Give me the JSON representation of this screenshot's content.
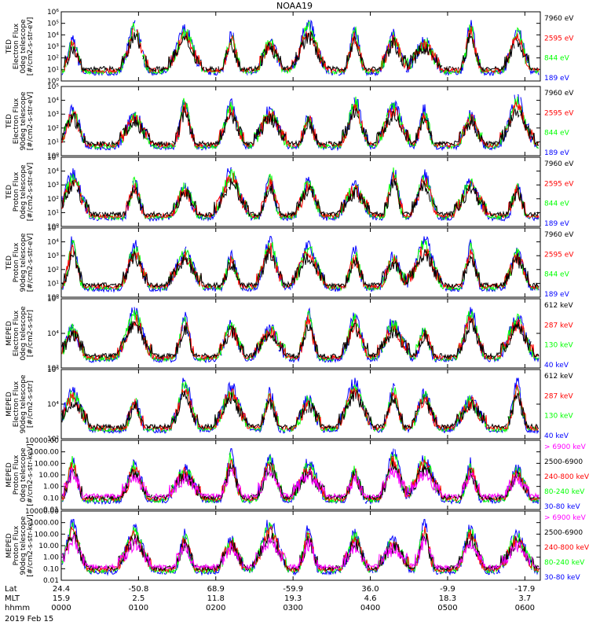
{
  "title": "NOAA19",
  "date_label": "2019 Feb 15",
  "ephemeris": {
    "row_labels": [
      "Lat",
      "MLT",
      "hhmm"
    ],
    "rows": [
      [
        "24.4",
        "-50.8",
        "68.9",
        "-59.9",
        "36.0",
        "-9.9",
        "-17.9"
      ],
      [
        "15.9",
        "2.5",
        "11.8",
        "19.3",
        "4.6",
        "18.3",
        "3.7"
      ],
      [
        "0000",
        "0100",
        "0200",
        "0300",
        "0400",
        "0500",
        "0600"
      ]
    ]
  },
  "colors": {
    "black": "#000000",
    "red": "#ff0000",
    "green": "#00ff00",
    "blue": "#0000ff",
    "magenta": "#ff00ff"
  },
  "chart_data": [
    {
      "type": "line",
      "instrument": "TED",
      "ylabel": [
        "TED",
        "Electron Flux",
        "0deg telescope",
        "[#/cm2-s-str-eV]"
      ],
      "yscale": "log",
      "ylim": [
        1,
        1000000
      ],
      "ytick_labels": [
        "10⁰",
        "10¹",
        "10²",
        "10³",
        "10⁴",
        "10⁵",
        "10⁶"
      ],
      "series": [
        {
          "name": "7960 eV",
          "color": "#000000"
        },
        {
          "name": "2595 eV",
          "color": "#ff0000"
        },
        {
          "name": "844 eV",
          "color": "#00ff00"
        },
        {
          "name": "189 eV",
          "color": "#0000ff"
        }
      ]
    },
    {
      "type": "line",
      "instrument": "TED",
      "ylabel": [
        "TED",
        "Electron Flux",
        "90deg telescope",
        "[#/cm2-s-str-eV]"
      ],
      "yscale": "log",
      "ylim": [
        1,
        100000
      ],
      "ytick_labels": [
        "10⁰",
        "10¹",
        "10²",
        "10³",
        "10⁴",
        "10⁵"
      ],
      "series": [
        {
          "name": "7960 eV",
          "color": "#000000"
        },
        {
          "name": "2595 eV",
          "color": "#ff0000"
        },
        {
          "name": "844 eV",
          "color": "#00ff00"
        },
        {
          "name": "189 eV",
          "color": "#0000ff"
        }
      ]
    },
    {
      "type": "line",
      "instrument": "TED",
      "ylabel": [
        "TED",
        "Proton Flux",
        "0deg telescope",
        "[#/cm2-s-str-eV]"
      ],
      "yscale": "log",
      "ylim": [
        1,
        100000
      ],
      "ytick_labels": [
        "10⁰",
        "10¹",
        "10²",
        "10³",
        "10⁴",
        "10⁵"
      ],
      "series": [
        {
          "name": "7960 eV",
          "color": "#000000"
        },
        {
          "name": "2595 eV",
          "color": "#ff0000"
        },
        {
          "name": "844 eV",
          "color": "#00ff00"
        },
        {
          "name": "189 eV",
          "color": "#0000ff"
        }
      ]
    },
    {
      "type": "line",
      "instrument": "TED",
      "ylabel": [
        "TED",
        "Proton Flux",
        "90deg telescope",
        "[#/cm2-s-str-eV]"
      ],
      "yscale": "log",
      "ylim": [
        1,
        100000
      ],
      "ytick_labels": [
        "10⁰",
        "10¹",
        "10²",
        "10³",
        "10⁴",
        "10⁵"
      ],
      "series": [
        {
          "name": "7960 eV",
          "color": "#000000"
        },
        {
          "name": "2595 eV",
          "color": "#ff0000"
        },
        {
          "name": "844 eV",
          "color": "#00ff00"
        },
        {
          "name": "189 eV",
          "color": "#0000ff"
        }
      ]
    },
    {
      "type": "line",
      "instrument": "MEPED",
      "ylabel": [
        "MEPED",
        "Electron Flux",
        "0deg telescope",
        "[#/cm2-s-str]"
      ],
      "yscale": "log",
      "ylim": [
        10,
        1000000
      ],
      "ytick_labels": [
        "10²",
        "10⁴",
        "10⁶"
      ],
      "series": [
        {
          "name": "612 keV",
          "color": "#000000"
        },
        {
          "name": "287 keV",
          "color": "#ff0000"
        },
        {
          "name": "130 keV",
          "color": "#00ff00"
        },
        {
          "name": "40 keV",
          "color": "#0000ff"
        }
      ]
    },
    {
      "type": "line",
      "instrument": "MEPED",
      "ylabel": [
        "MEPED",
        "Electron Flux",
        "90deg telescope",
        "[#/cm2-s-str]"
      ],
      "yscale": "log",
      "ylim": [
        10,
        1000000
      ],
      "ytick_labels": [
        "10²",
        "10⁴",
        "10⁶"
      ],
      "series": [
        {
          "name": "612 keV",
          "color": "#000000"
        },
        {
          "name": "287 keV",
          "color": "#ff0000"
        },
        {
          "name": "130 keV",
          "color": "#00ff00"
        },
        {
          "name": "40 keV",
          "color": "#0000ff"
        }
      ]
    },
    {
      "type": "line",
      "instrument": "MEPED",
      "ylabel": [
        "MEPED",
        "Proton Flux",
        "0deg telescope",
        "[#/cm2-s-str-keV]"
      ],
      "yscale": "log",
      "ylim": [
        0.01,
        10000
      ],
      "ytick_labels": [
        "0.01",
        "0.10",
        "1.00",
        "10.00",
        "100.00",
        "1000.00",
        "10000.00"
      ],
      "series": [
        {
          "name": "> 6900 keV",
          "color": "#ff00ff"
        },
        {
          "name": "2500-6900",
          "color": "#000000"
        },
        {
          "name": "240-800 keV",
          "color": "#ff0000"
        },
        {
          "name": "80-240 keV",
          "color": "#00ff00"
        },
        {
          "name": "30-80 keV",
          "color": "#0000ff"
        }
      ]
    },
    {
      "type": "line",
      "instrument": "MEPED",
      "ylabel": [
        "MEPED",
        "Proton Flux",
        "90deg telescope",
        "[#/cm2-s-str-keV]"
      ],
      "yscale": "log",
      "ylim": [
        0.01,
        10000
      ],
      "ytick_labels": [
        "0.01",
        "0.10",
        "1.00",
        "10.00",
        "100.00",
        "1000.00",
        "10000.00"
      ],
      "series": [
        {
          "name": "> 6900 keV",
          "color": "#ff00ff"
        },
        {
          "name": "2500-6900",
          "color": "#000000"
        },
        {
          "name": "240-800 keV",
          "color": "#ff0000"
        },
        {
          "name": "80-240 keV",
          "color": "#00ff00"
        },
        {
          "name": "30-80 keV",
          "color": "#0000ff"
        }
      ]
    }
  ]
}
